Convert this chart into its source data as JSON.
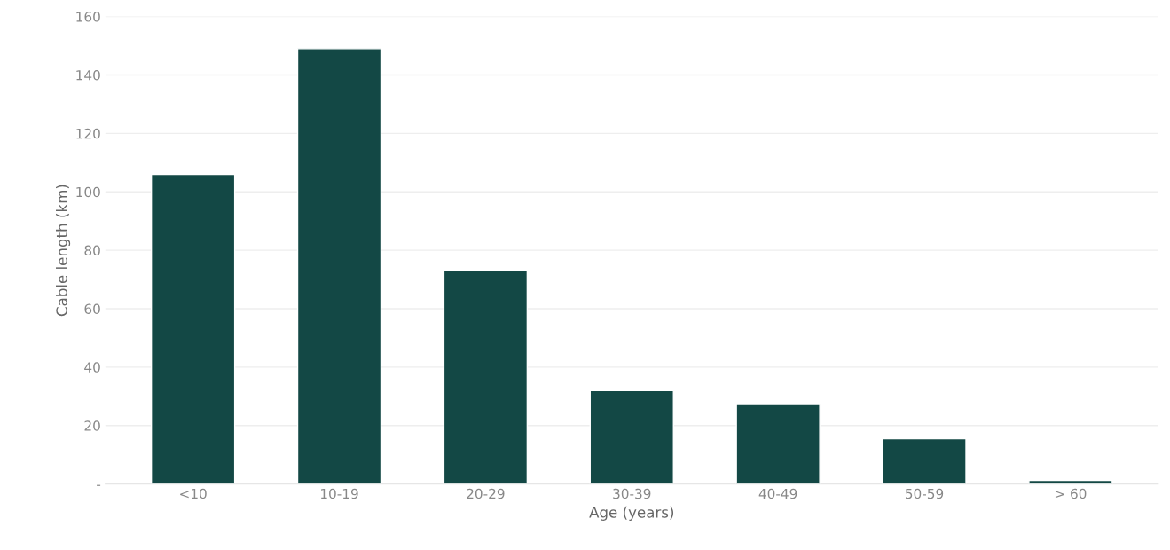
{
  "chart_data": {
    "type": "bar",
    "xlabel": "Age (years)",
    "ylabel": "Cable length (km)",
    "categories": [
      "<10",
      "10-19",
      "20-29",
      "30-39",
      "40-49",
      "50-59",
      "> 60"
    ],
    "values": [
      106,
      149,
      73,
      32,
      27.5,
      15.5,
      1.2
    ],
    "color": "#134845",
    "ylim": [
      0,
      160
    ],
    "yticks": [
      {
        "value": 0,
        "label": "-"
      },
      20,
      40,
      60,
      80,
      100,
      120,
      140,
      160
    ],
    "grid": "y"
  }
}
